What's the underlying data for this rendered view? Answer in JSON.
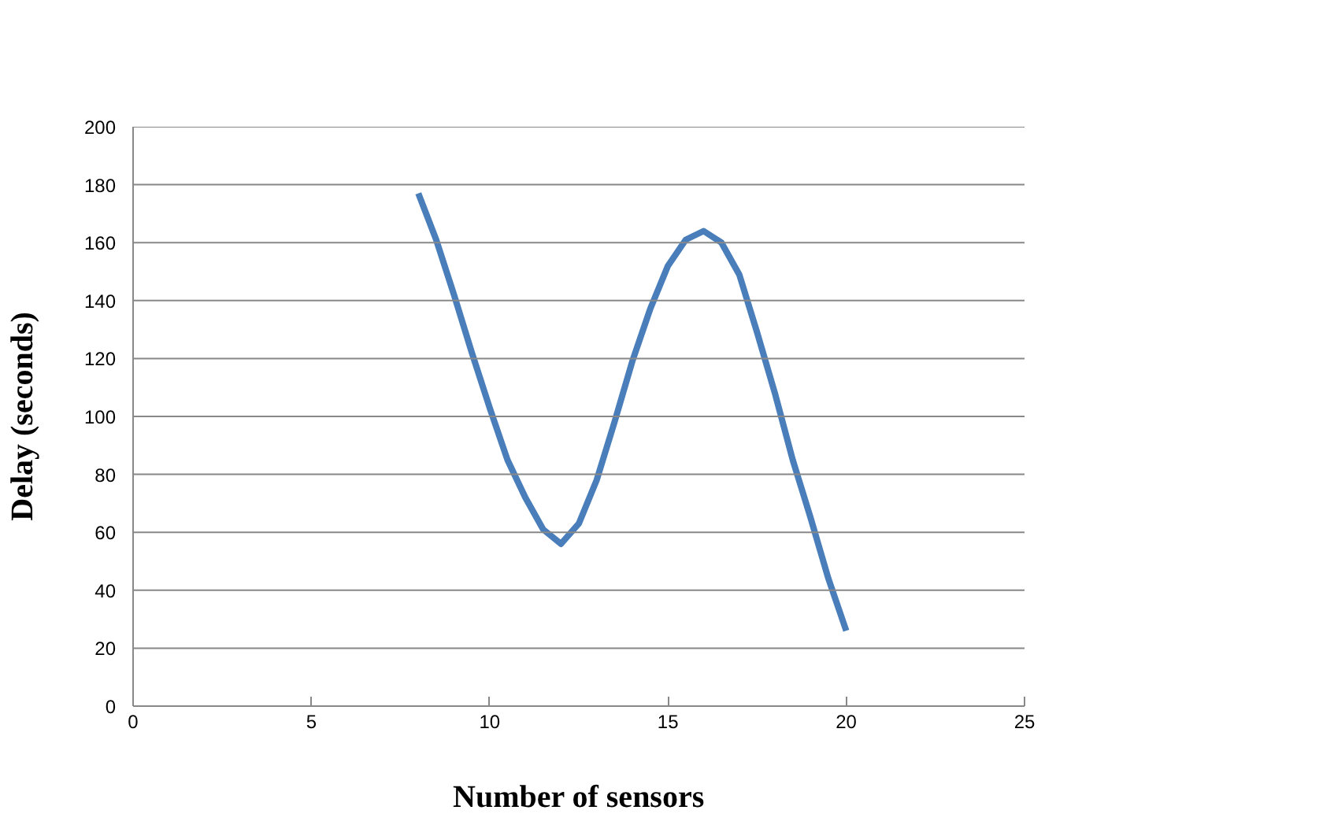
{
  "chart_data": {
    "type": "line",
    "xlabel": "Number of sensors",
    "ylabel": "Delay (seconds)",
    "x": [
      8,
      8.5,
      9,
      9.5,
      10,
      10.5,
      11,
      11.5,
      12,
      12.5,
      13,
      13.5,
      14,
      14.5,
      15,
      15.5,
      16,
      16.5,
      17,
      17.5,
      18,
      18.5,
      19,
      19.5,
      20
    ],
    "series": [
      {
        "color": "#4a7ebb",
        "values": [
          177,
          161,
          142,
          122,
          103,
          85,
          72,
          61,
          56,
          63,
          78,
          98,
          119,
          137,
          152,
          161,
          164,
          160,
          149,
          129,
          108,
          85,
          65,
          44,
          26
        ]
      }
    ],
    "xlim": [
      0,
      25
    ],
    "xticks": [
      0,
      5,
      10,
      15,
      20,
      25
    ],
    "ylim": [
      0,
      200
    ],
    "yticks": [
      0,
      20,
      40,
      60,
      80,
      100,
      120,
      140,
      160,
      180,
      200
    ],
    "grid": "y",
    "marker": "none",
    "line_style": "solid"
  }
}
